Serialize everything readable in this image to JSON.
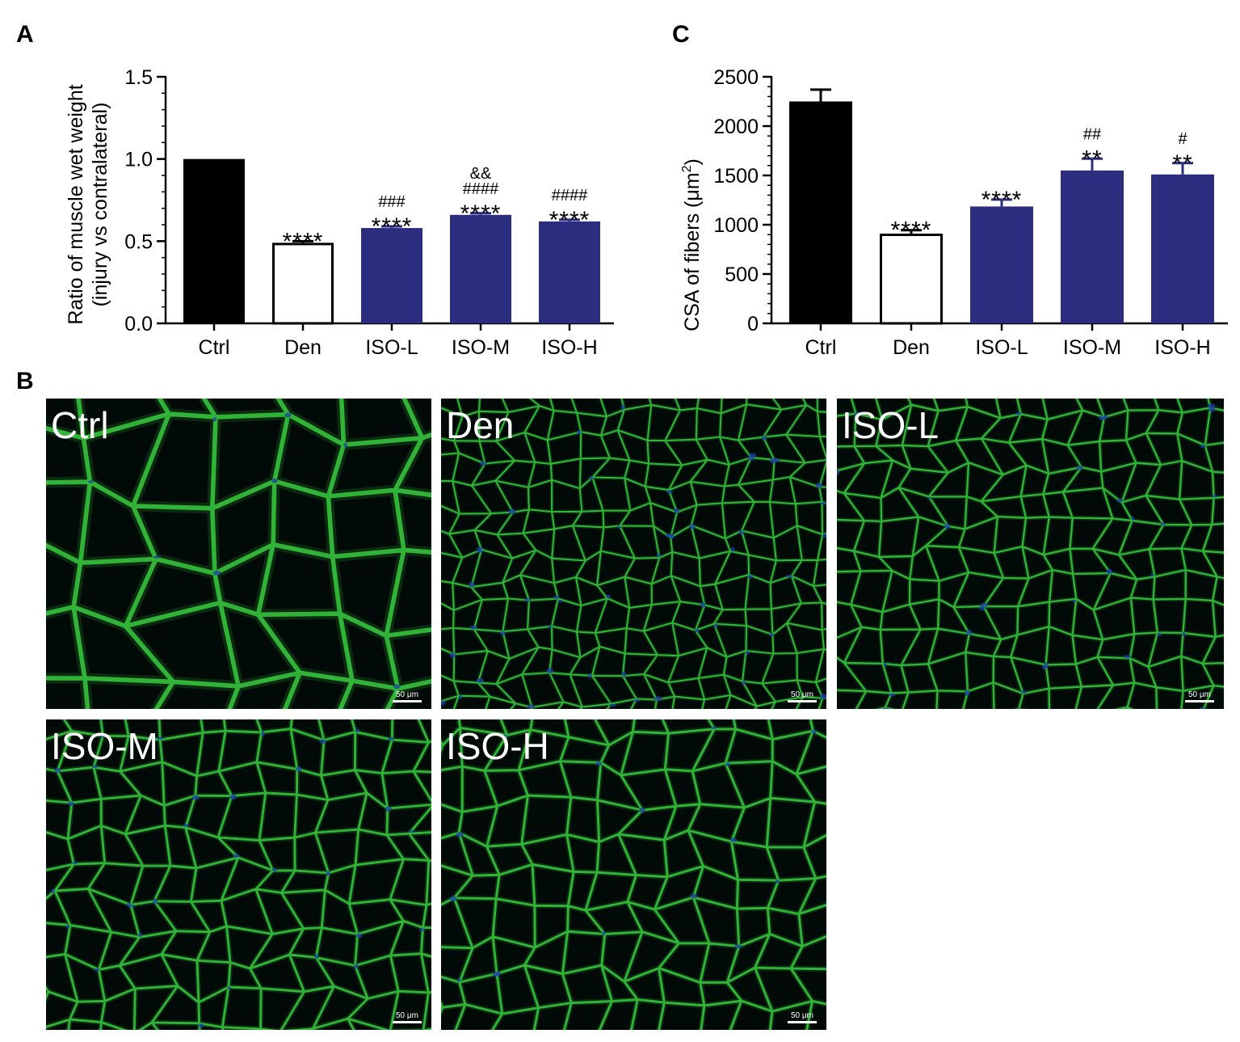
{
  "panels": {
    "a": "A",
    "b": "B",
    "c": "C"
  },
  "chart_data": [
    {
      "id": "A",
      "type": "bar",
      "title": "",
      "xlabel": "",
      "ylabel_line1": "Ratio of muscle wet weight",
      "ylabel_line2": "(injury vs contralateral)",
      "ylim": [
        0,
        1.5
      ],
      "yticks": [
        0,
        0.5,
        1.0,
        1.5
      ],
      "yticklabels": [
        "0.0",
        "0.5",
        "1.0",
        "1.5"
      ],
      "grid": false,
      "categories": [
        "Ctrl",
        "Den",
        "ISO-L",
        "ISO-M",
        "ISO-H"
      ],
      "values": [
        1.0,
        0.49,
        0.58,
        0.66,
        0.62
      ],
      "errors": [
        0,
        0.01,
        0.01,
        0.01,
        0.01
      ],
      "bar_colors": [
        "#000000",
        "#ffffff",
        "#2b2d7e",
        "#2b2d7e",
        "#2b2d7e"
      ],
      "annotations": [
        [],
        [
          "****"
        ],
        [
          "****",
          "###"
        ],
        [
          "****",
          "####",
          "&&"
        ],
        [
          "****",
          "####"
        ]
      ]
    },
    {
      "id": "C",
      "type": "bar",
      "title": "",
      "xlabel": "",
      "ylabel_pre": "CSA of fibers (μm",
      "ylabel_sup": "2",
      "ylabel_post": ")",
      "ylim": [
        0,
        2500
      ],
      "yticks": [
        0,
        500,
        1000,
        1500,
        2000,
        2500
      ],
      "yticklabels": [
        "0",
        "500",
        "1000",
        "1500",
        "2000",
        "2500"
      ],
      "grid": false,
      "categories": [
        "Ctrl",
        "Den",
        "ISO-L",
        "ISO-M",
        "ISO-H"
      ],
      "values": [
        2250,
        910,
        1185,
        1550,
        1510
      ],
      "errors": [
        120,
        35,
        70,
        120,
        115
      ],
      "bar_colors": [
        "#000000",
        "#ffffff",
        "#2b2d7e",
        "#2b2d7e",
        "#2b2d7e"
      ],
      "annotations": [
        [],
        [
          "****"
        ],
        [
          "****"
        ],
        [
          "**",
          "##"
        ],
        [
          "**",
          "#"
        ]
      ]
    }
  ],
  "micrographs": [
    {
      "label": "Ctrl",
      "scale": "50 μm"
    },
    {
      "label": "Den",
      "scale": "50 μm"
    },
    {
      "label": "ISO-L",
      "scale": "50 μm"
    },
    {
      "label": "ISO-M",
      "scale": "50 μm"
    },
    {
      "label": "ISO-H",
      "scale": "50 μm"
    }
  ],
  "colors": {
    "accent_blue": "#2b2d7e",
    "membrane_green": "#35c23d",
    "nuclei_blue": "#1c3fa6",
    "background": "#020a08"
  }
}
